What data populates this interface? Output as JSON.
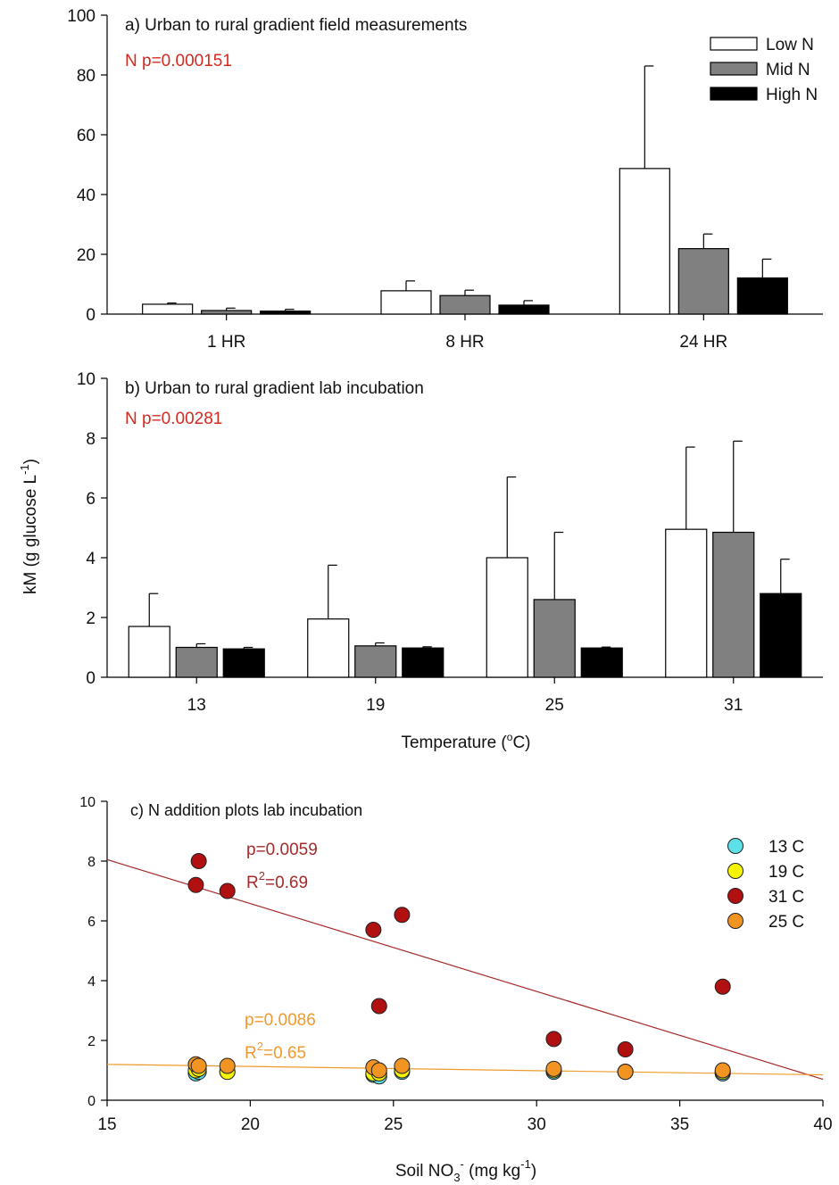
{
  "figure": {
    "shared_ylabel_main": "kM (g glucose L",
    "shared_ylabel_sup": "-1",
    "shared_ylabel_end": ")"
  },
  "chart_data": [
    {
      "type": "bar",
      "title": "a) Urban to rural gradient field measurements",
      "annotation": "N p=0.000151",
      "annotation_color": "#d42a1f",
      "categories": [
        "1 HR",
        "8 HR",
        "24 HR"
      ],
      "ylim": [
        0,
        100
      ],
      "yticks": [
        0,
        20,
        40,
        60,
        80,
        100
      ],
      "legend_position": "top-right",
      "series": [
        {
          "name": "Low N",
          "color": "#ffffff",
          "values": [
            3.3,
            7.8,
            48.7
          ],
          "errors": [
            0.4,
            3.3,
            34.3
          ]
        },
        {
          "name": "Mid N",
          "color": "#808080",
          "values": [
            1.2,
            6.2,
            21.9
          ],
          "errors": [
            0.8,
            1.8,
            4.9
          ]
        },
        {
          "name": "High N",
          "color": "#000000",
          "values": [
            1.0,
            3.0,
            12.1
          ],
          "errors": [
            0.6,
            1.5,
            6.3
          ]
        }
      ]
    },
    {
      "type": "bar",
      "title": "b) Urban to rural gradient lab incubation",
      "annotation": "N p=0.00281",
      "annotation_color": "#d42a1f",
      "categories": [
        "13",
        "19",
        "25",
        "31"
      ],
      "xlabel_main": "Temperature (",
      "xlabel_sup": "o",
      "xlabel_end": "C)",
      "ylim": [
        0,
        10
      ],
      "yticks": [
        0,
        2,
        4,
        6,
        8,
        10
      ],
      "series": [
        {
          "name": "Low N",
          "color": "#ffffff",
          "values": [
            1.7,
            1.95,
            4.0,
            4.95
          ],
          "errors": [
            1.1,
            1.8,
            2.7,
            2.75
          ]
        },
        {
          "name": "Mid N",
          "color": "#808080",
          "values": [
            1.0,
            1.05,
            2.6,
            4.85
          ],
          "errors": [
            0.12,
            0.1,
            2.25,
            3.05
          ]
        },
        {
          "name": "High N",
          "color": "#000000",
          "values": [
            0.95,
            0.98,
            0.98,
            2.8
          ],
          "errors": [
            0.05,
            0.04,
            0.03,
            1.15
          ]
        }
      ]
    },
    {
      "type": "scatter",
      "title": "c) N addition plots lab incubation",
      "xlabel_main": "Soil NO",
      "xlabel_sub": "3",
      "xlabel_sup1": "-",
      "xlabel_mid": " (mg kg",
      "xlabel_sup2": "-1",
      "xlabel_end": ")",
      "xlim": [
        15,
        40
      ],
      "ylim": [
        0,
        10
      ],
      "xticks": [
        15,
        20,
        25,
        30,
        35,
        40
      ],
      "yticks": [
        0,
        2,
        4,
        6,
        8,
        10
      ],
      "legend_position": "top-right",
      "series": [
        {
          "name": "13 C",
          "color": "#5ee0e8",
          "x": [
            18.1,
            18.2,
            19.2,
            24.3,
            24.5,
            25.3,
            30.6,
            33.1,
            36.5
          ],
          "y": [
            0.9,
            0.95,
            0.95,
            0.85,
            0.8,
            0.95,
            0.95,
            0.95,
            0.9
          ]
        },
        {
          "name": "19 C",
          "color": "#f5f500",
          "x": [
            18.1,
            18.2,
            19.2,
            24.3,
            24.5,
            25.3,
            30.6,
            33.1,
            36.5
          ],
          "y": [
            1.0,
            1.05,
            0.95,
            0.9,
            0.9,
            1.0,
            1.0,
            0.95,
            0.95
          ]
        },
        {
          "name": "31 C",
          "color": "#b01010",
          "x": [
            18.1,
            18.2,
            19.2,
            24.3,
            24.5,
            25.3,
            30.6,
            33.1,
            36.5
          ],
          "y": [
            7.2,
            8.0,
            7.0,
            5.7,
            3.15,
            6.2,
            2.05,
            1.7,
            3.8
          ]
        },
        {
          "name": "25 C",
          "color": "#f29422",
          "x": [
            18.1,
            18.2,
            19.2,
            24.3,
            24.5,
            25.3,
            30.6,
            33.1,
            36.5
          ],
          "y": [
            1.2,
            1.15,
            1.15,
            1.1,
            1.0,
            1.15,
            1.05,
            0.95,
            1.0
          ]
        }
      ],
      "regressions": [
        {
          "series": "31 C",
          "color": "#a52a2a",
          "x": [
            15,
            40
          ],
          "y": [
            8.05,
            0.7
          ],
          "p_label": "p=0.0059",
          "r2_main": "R",
          "r2_sup": "2",
          "r2_value": "=0.69"
        },
        {
          "series": "25 C",
          "color": "#ef9a2e",
          "x": [
            15,
            40
          ],
          "y": [
            1.2,
            0.85
          ],
          "p_label": "p=0.0086",
          "r2_main": "R",
          "r2_sup": "2",
          "r2_value": "=0.65"
        }
      ]
    }
  ]
}
